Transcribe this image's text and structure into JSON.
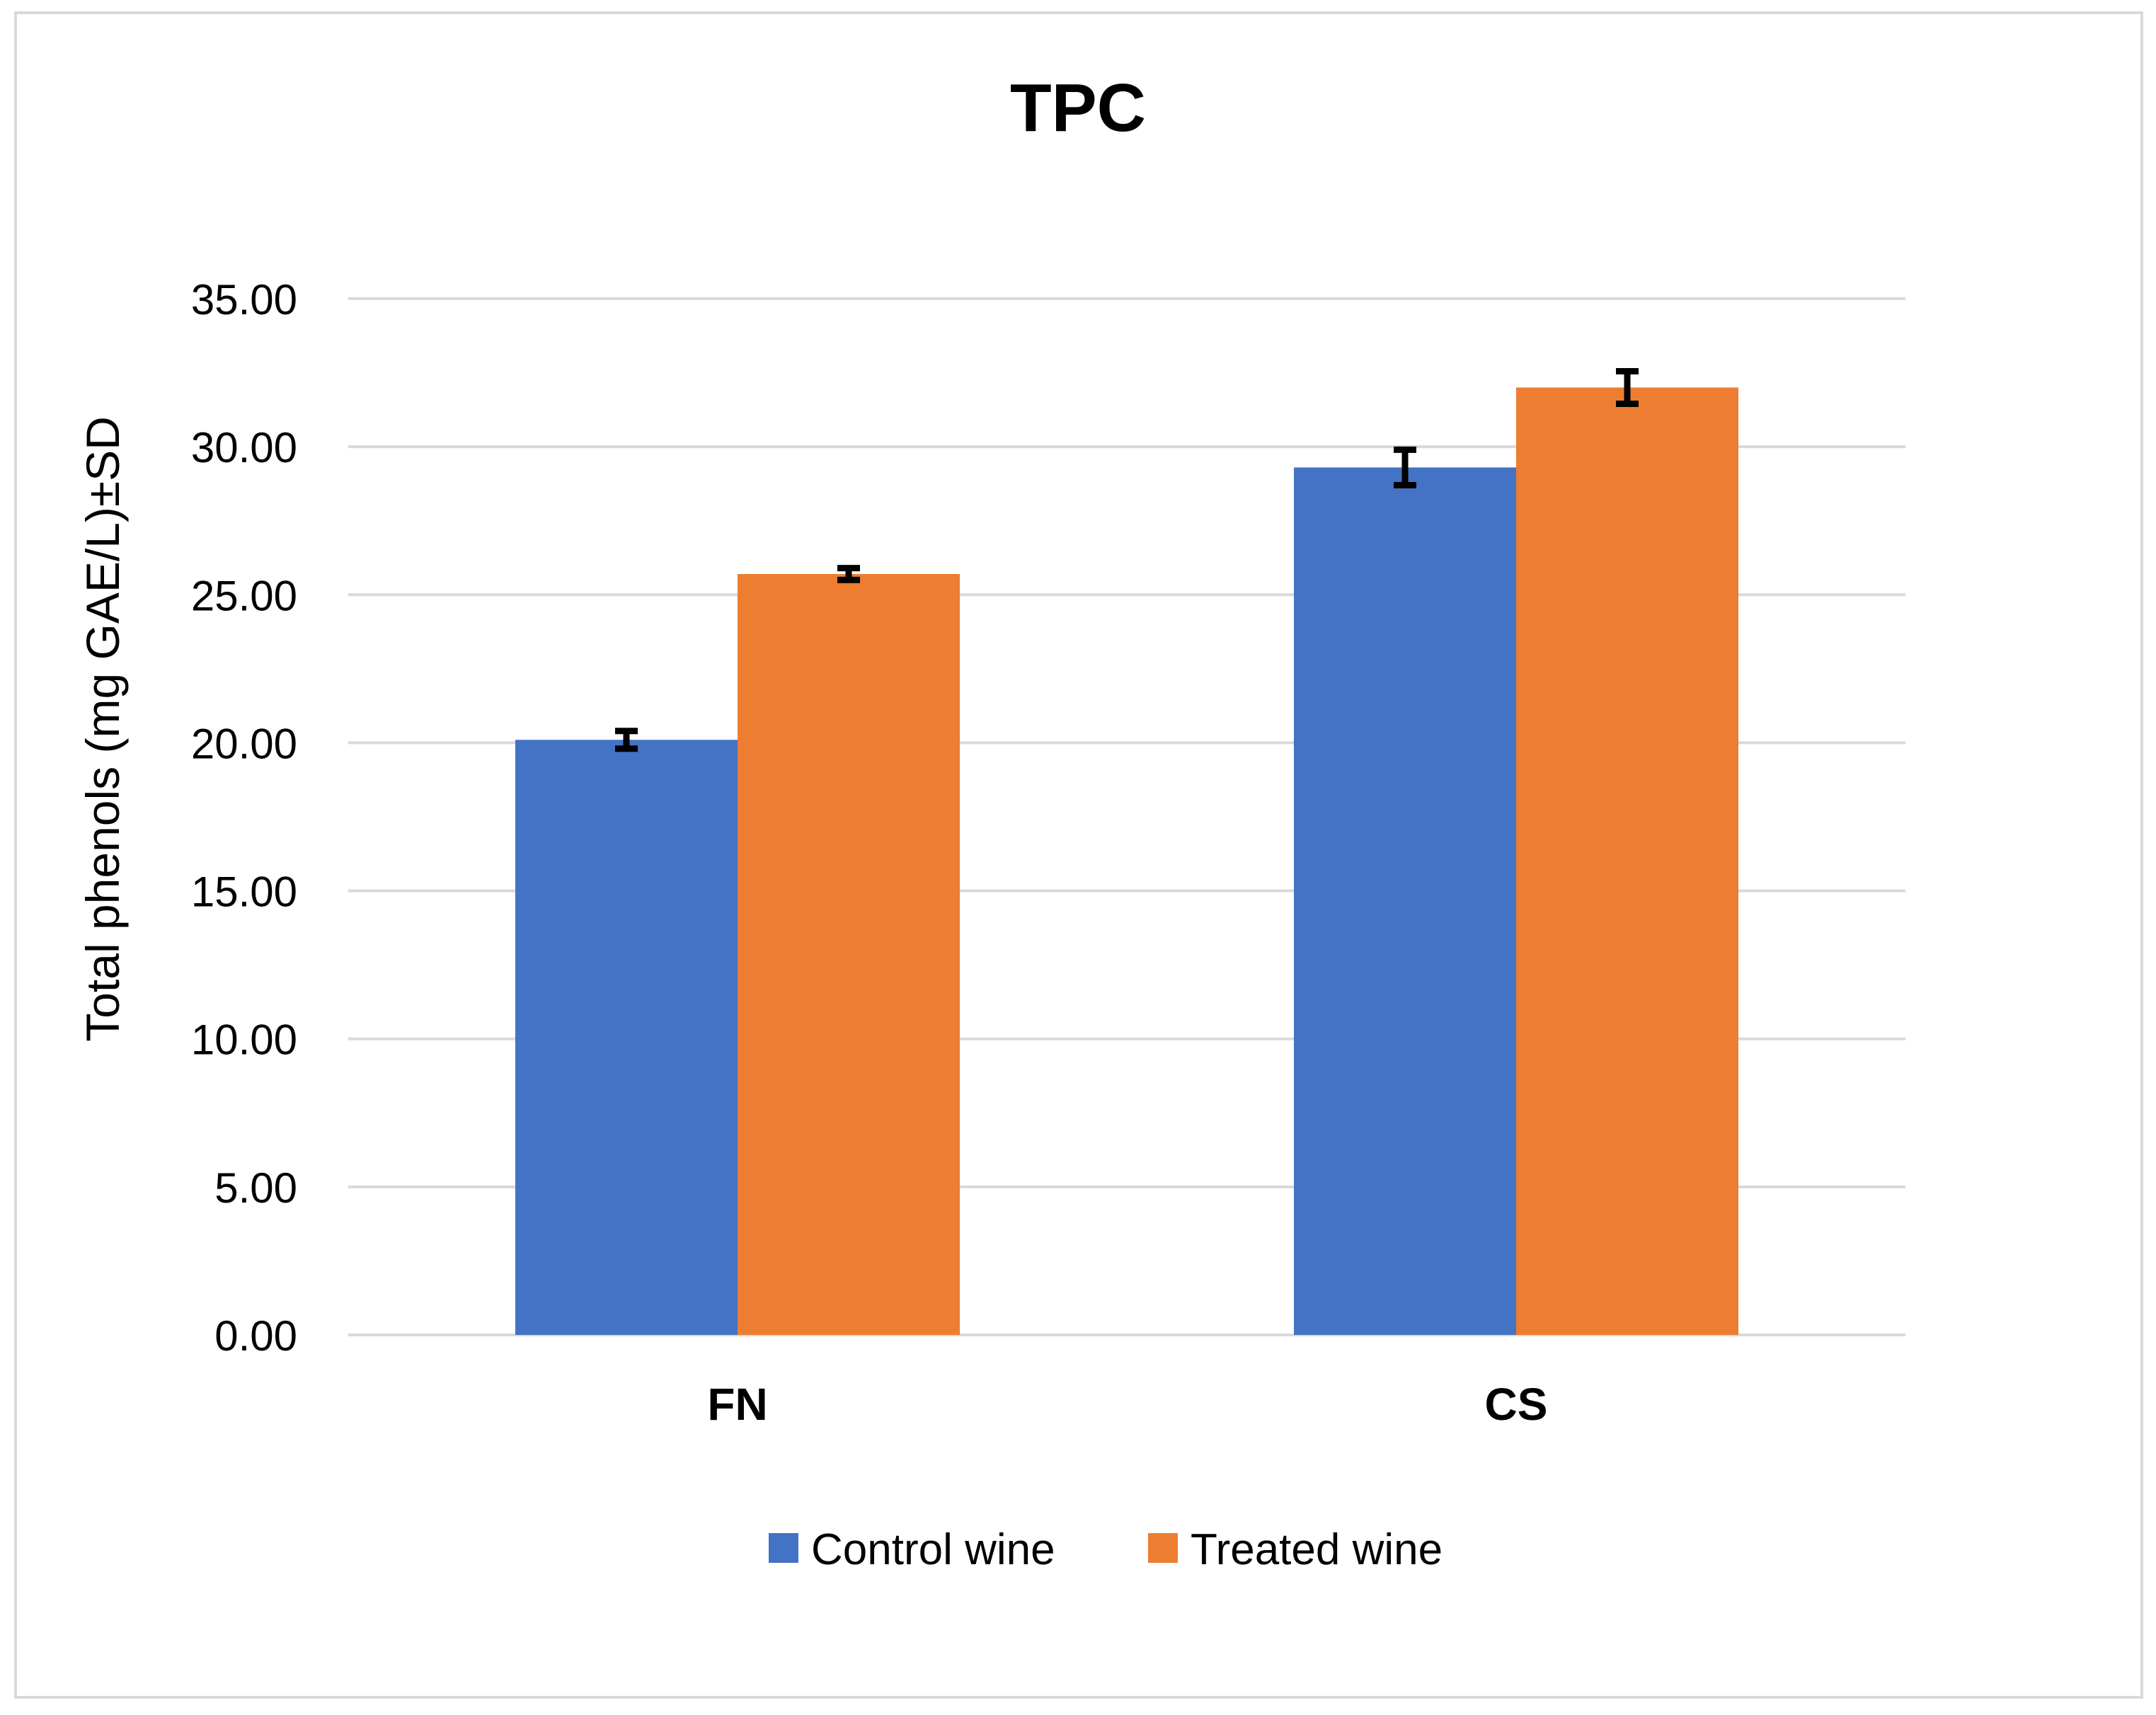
{
  "chart_data": {
    "type": "bar",
    "title": "TPC",
    "xlabel": "",
    "ylabel": "Total phenols (mg GAE/L)±SD",
    "ylim": [
      0,
      35
    ],
    "yticks": [
      0,
      5,
      10,
      15,
      20,
      25,
      30,
      35
    ],
    "ytick_labels": [
      "0.00",
      "5.00",
      "10.00",
      "15.00",
      "20.00",
      "25.00",
      "30.00",
      "35.00"
    ],
    "categories": [
      "FN",
      "CS"
    ],
    "series": [
      {
        "name": "Control wine",
        "color": "#4472c4",
        "values": [
          20.1,
          29.3
        ],
        "errors": [
          0.3,
          0.6
        ]
      },
      {
        "name": "Treated wine",
        "color": "#ed7d31",
        "values": [
          25.7,
          32.0
        ],
        "errors": [
          0.2,
          0.55
        ]
      }
    ],
    "grid": true,
    "legend_position": "bottom"
  }
}
